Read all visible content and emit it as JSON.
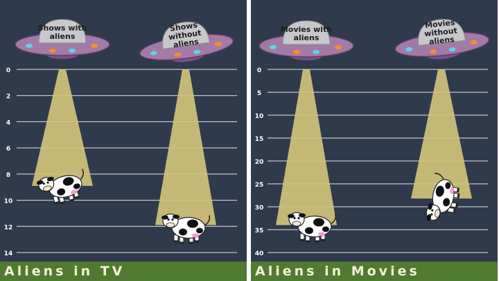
{
  "colors": {
    "background": "#2f3a4d",
    "gridline": "#e6e6e6",
    "beam": "#d2c27a",
    "grass": "#4f7a30",
    "ufo_body": "#a37aa6",
    "ufo_dome": "#c8c8cc",
    "caption_text": "#f4f0d8"
  },
  "chart_data": [
    {
      "type": "bar",
      "title": "Aliens in TV",
      "categories": [
        "Shows with aliens",
        "Shows without aliens"
      ],
      "values": [
        8.9,
        11.9
      ],
      "ylim": [
        0,
        14
      ],
      "yticks": [
        0,
        2,
        4,
        6,
        8,
        10,
        12,
        14
      ],
      "yaxis_inverted": true,
      "grid": true
    },
    {
      "type": "bar",
      "title": "Aliens in Movies",
      "categories": [
        "Movies with aliens",
        "Movies without aliens"
      ],
      "values": [
        34.0,
        28.2
      ],
      "ylim": [
        0,
        40
      ],
      "yticks": [
        0,
        5,
        10,
        15,
        20,
        25,
        30,
        35,
        40
      ],
      "yaxis_inverted": true,
      "grid": true
    }
  ],
  "icons": [
    "ufo-icon",
    "cow-icon"
  ]
}
